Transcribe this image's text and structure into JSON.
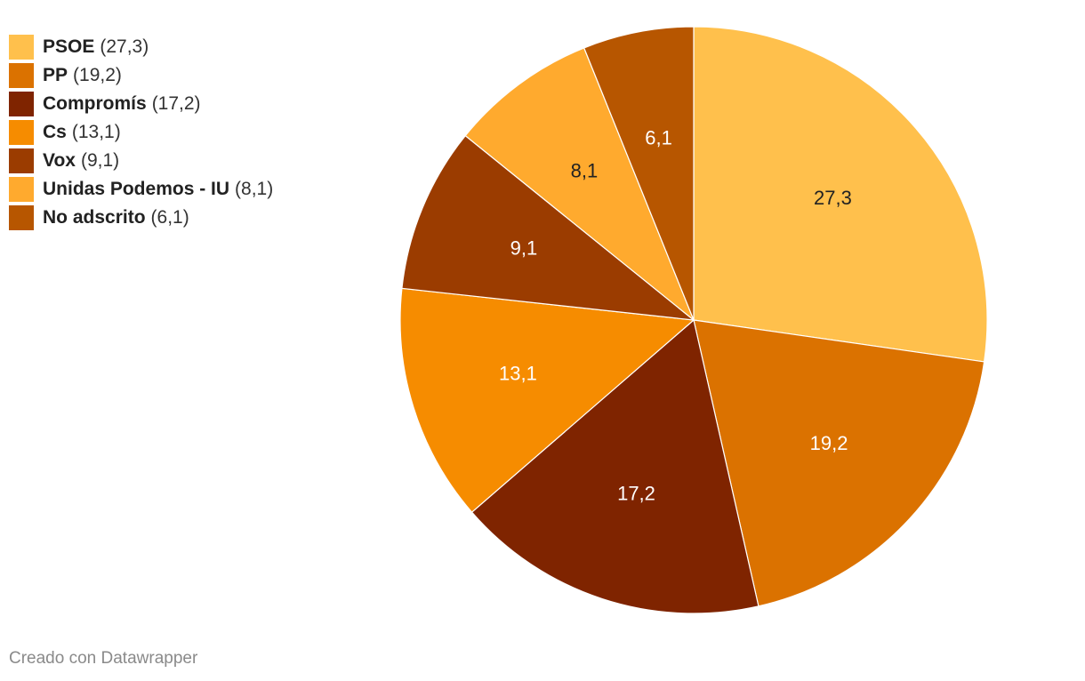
{
  "chart_data": {
    "type": "pie",
    "categories": [
      "PSOE",
      "PP",
      "Compromís",
      "Cs",
      "Vox",
      "Unidas Podemos - IU",
      "No adscrito"
    ],
    "values": [
      27.3,
      19.2,
      17.2,
      13.1,
      9.1,
      8.1,
      6.1
    ],
    "labels": [
      "27,3",
      "19,2",
      "17,2",
      "13,1",
      "9,1",
      "8,1",
      "6,1"
    ],
    "legend_values": [
      "(27,3)",
      "(19,2)",
      "(17,2)",
      "(13,1)",
      "(9,1)",
      "(8,1)",
      "(6,1)"
    ],
    "colors": [
      "#ffc04c",
      "#db7200",
      "#7f2400",
      "#f68c00",
      "#9b3c00",
      "#ffaa2e",
      "#b75600"
    ],
    "label_colors": [
      "#222222",
      "#ffffff",
      "#ffffff",
      "#ffffff",
      "#ffffff",
      "#222222",
      "#ffffff"
    ],
    "legend_placement": "top-left",
    "start_angle": "12 o'clock",
    "direction": "clockwise"
  },
  "footer": {
    "credit": "Creado con Datawrapper"
  }
}
